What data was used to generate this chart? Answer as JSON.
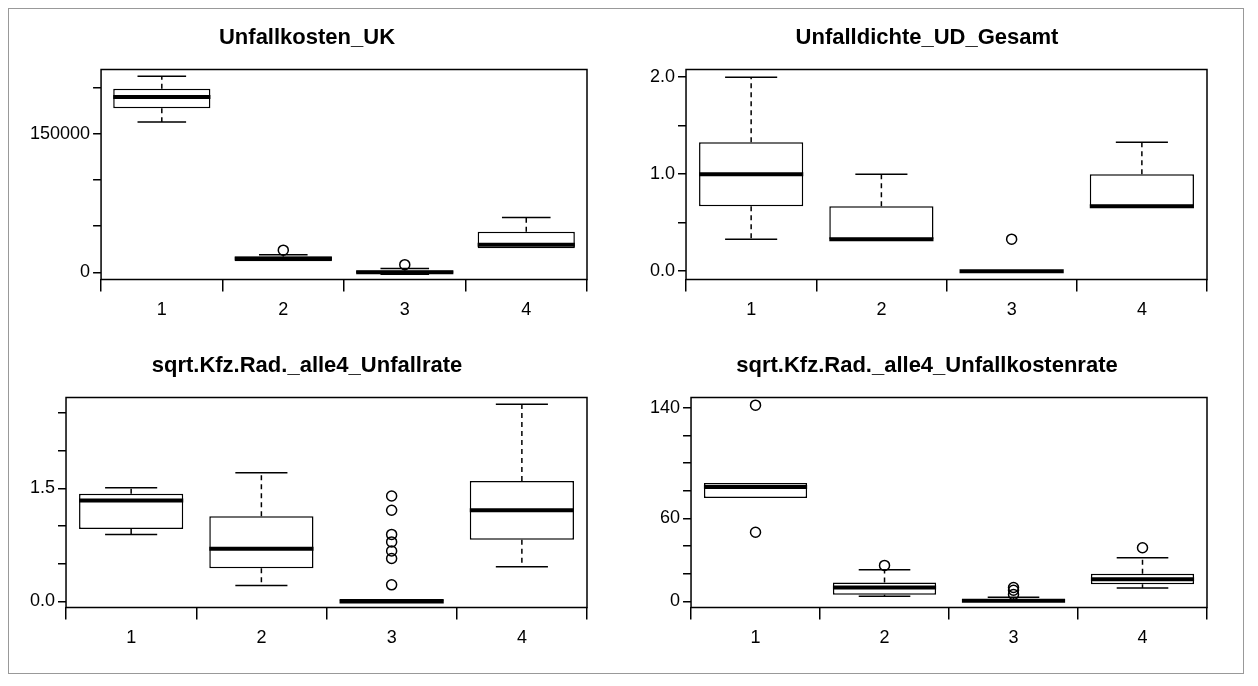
{
  "chart_data": [
    {
      "type": "box",
      "title": "Unfallkosten_UK",
      "categories": [
        "1",
        "2",
        "3",
        "4"
      ],
      "ylim": [
        -7700,
        220000
      ],
      "yticks": [
        0,
        {
          "value": 50000,
          "label": null
        },
        {
          "value": 100000,
          "label": null
        },
        150000,
        {
          "value": 200000,
          "label": null
        }
      ],
      "grid": false,
      "boxes": [
        {
          "low": 163000,
          "q1": 178000,
          "median": 190000,
          "q3": 199000,
          "high": 212500
        },
        {
          "low": 12000,
          "q1": 12000,
          "median": 15000,
          "q3": 17000,
          "high": 19000,
          "outliers": [
            24000
          ]
        },
        {
          "low": -2000,
          "q1": -1000,
          "median": 0,
          "q3": 2000,
          "high": 4000,
          "outliers": [
            8300
          ]
        },
        {
          "low": 26000,
          "q1": 26000,
          "median": 29800,
          "q3": 44000,
          "high": 59500
        }
      ]
    },
    {
      "type": "box",
      "title": "Unfalldichte_UD_Gesamt",
      "categories": [
        "1",
        "2",
        "3",
        "4"
      ],
      "ylim": [
        -0.085,
        2.08
      ],
      "yticks": [
        {
          "value": 0,
          "label": "0.0"
        },
        {
          "value": 0.5,
          "label": null
        },
        {
          "value": 1,
          "label": "1.0"
        },
        {
          "value": 1.5,
          "label": null
        },
        {
          "value": 2,
          "label": "2.0"
        }
      ],
      "grid": false,
      "boxes": [
        {
          "low": 0.33,
          "q1": 0.67,
          "median": 1.0,
          "q3": 1.33,
          "high": 2.0
        },
        {
          "low": 0.33,
          "q1": 0.33,
          "median": 0.33,
          "q3": 0.67,
          "high": 1.0
        },
        {
          "low": 0,
          "q1": 0,
          "median": 0,
          "q3": 0,
          "high": 0,
          "outliers": [
            0.33
          ]
        },
        {
          "low": 0.67,
          "q1": 0.67,
          "median": 0.67,
          "q3": 1.0,
          "high": 1.33
        }
      ]
    },
    {
      "type": "box",
      "title": "sqrt.Kfz.Rad._alle4_Unfallrate",
      "categories": [
        "1",
        "2",
        "3",
        "4"
      ],
      "ylim": [
        -0.08,
        2.71
      ],
      "yticks": [
        {
          "value": 0,
          "label": "0.0"
        },
        {
          "value": 0.5,
          "label": null
        },
        {
          "value": 1,
          "label": null
        },
        {
          "value": 1.5,
          "label": "1.5"
        },
        {
          "value": 2,
          "label": null
        },
        {
          "value": 2.5,
          "label": null
        }
      ],
      "grid": false,
      "boxes": [
        {
          "low": 0.89,
          "q1": 0.96,
          "median": 1.34,
          "q3": 1.43,
          "high": 1.51
        },
        {
          "low": 0.21,
          "q1": 0.44,
          "median": 0.7,
          "q3": 1.13,
          "high": 1.71
        },
        {
          "low": 0,
          "q1": 0,
          "median": 0,
          "q3": 0.03,
          "high": 0.03,
          "outliers": [
            1.4,
            1.21,
            0.89,
            0.79,
            0.67,
            0.57,
            0.22
          ]
        },
        {
          "low": 0.46,
          "q1": 0.82,
          "median": 1.21,
          "q3": 1.6,
          "high": 2.62
        }
      ]
    },
    {
      "type": "box",
      "title": "sqrt.Kfz.Rad._alle4_Unfallkostenrate",
      "categories": [
        "1",
        "2",
        "3",
        "4"
      ],
      "ylim": [
        -4.4,
        147.6
      ],
      "yticks": [
        0,
        {
          "value": 20,
          "label": null
        },
        {
          "value": 40,
          "label": null
        },
        60,
        {
          "value": 80,
          "label": null
        },
        {
          "value": 100,
          "label": null
        },
        {
          "value": 120,
          "label": null
        },
        140
      ],
      "grid": false,
      "boxes": [
        {
          "low": 74.8,
          "q1": 74.8,
          "median": 82.8,
          "q3": 85.6,
          "high": 85.6,
          "outliers": [
            142,
            50
          ]
        },
        {
          "low": 3.6,
          "q1": 4.8,
          "median": 10,
          "q3": 13.6,
          "high": 22.8,
          "outliers": [
            26
          ]
        },
        {
          "low": 0,
          "q1": 0,
          "median": 0.5,
          "q3": 1.5,
          "high": 3,
          "outliers": [
            5,
            8,
            10
          ]
        },
        {
          "low": 9.6,
          "q1": 12.4,
          "median": 16,
          "q3": 20,
          "high": 31.6,
          "outliers": [
            38.8
          ]
        }
      ]
    }
  ]
}
